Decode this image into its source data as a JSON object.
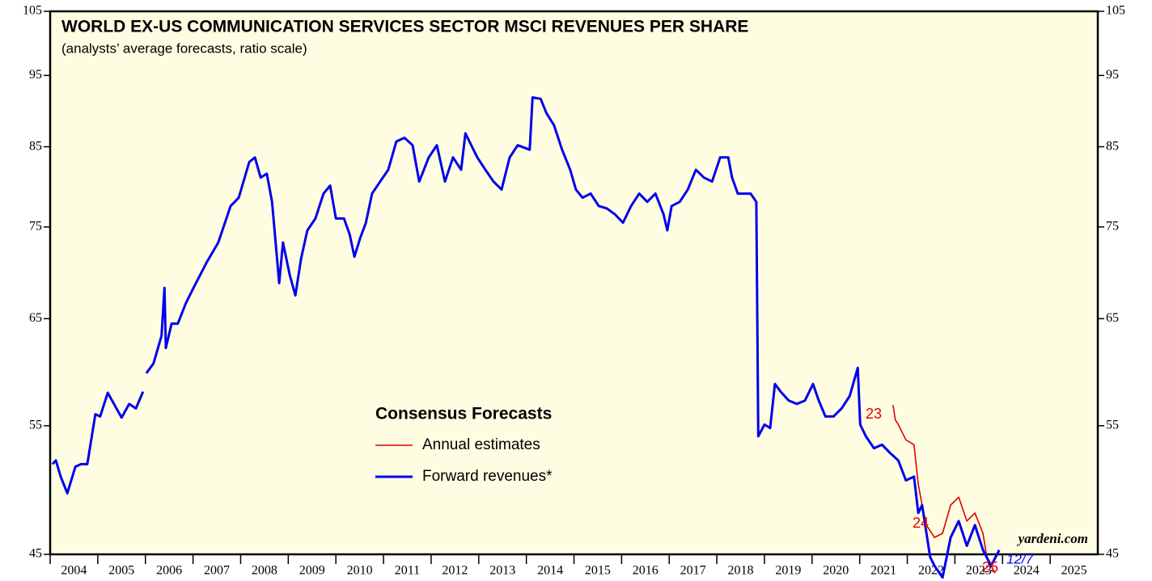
{
  "chart_data": {
    "type": "line",
    "title": "WORLD EX-US COMMUNICATION SERVICES SECTOR MSCI REVENUES PER SHARE",
    "subtitle": "(analysts’ average forecasts, ratio scale)",
    "legend_title": "Consensus Forecasts",
    "source": "yardeni.com",
    "log_scale": true,
    "ylim": [
      45,
      105
    ],
    "yticks": [
      45,
      55,
      65,
      75,
      85,
      95,
      105
    ],
    "xlim": [
      2004,
      2026
    ],
    "xticks": [
      2004,
      2005,
      2006,
      2007,
      2008,
      2009,
      2010,
      2011,
      2012,
      2013,
      2014,
      2015,
      2016,
      2017,
      2018,
      2019,
      2020,
      2021,
      2022,
      2023,
      2024,
      2025
    ],
    "series": [
      {
        "name": "Annual estimates",
        "color": "#e00000",
        "x": [
          2021.7,
          2021.75,
          2021.81,
          2021.97,
          2022.14,
          2022.23,
          2022.31,
          2022.4,
          2022.57,
          2022.74,
          2022.91,
          2023.08,
          2023.25,
          2023.42,
          2023.59,
          2023.67,
          2023.84
        ],
        "values": [
          56.8,
          55.5,
          55.1,
          53.8,
          53.4,
          50.2,
          48.6,
          47.1,
          46.2,
          46.5,
          48.6,
          49.2,
          47.4,
          48.0,
          46.5,
          44.8,
          43.7
        ]
      },
      {
        "name": "Forward revenues*",
        "color": "#0000ee",
        "x": [
          2004.05,
          2004.12,
          2004.22,
          2004.36,
          2004.53,
          2004.65,
          2004.78,
          2004.95,
          2005.05,
          2005.21,
          2005.5,
          2005.66,
          2005.8,
          2005.95,
          2005.98,
          2006.02,
          2006.17,
          2006.34,
          2006.4,
          2006.43,
          2006.55,
          2006.68,
          2006.85,
          2007.02,
          2007.28,
          2007.53,
          2007.79,
          2007.96,
          2008.18,
          2008.3,
          2008.42,
          2008.55,
          2008.66,
          2008.81,
          2008.89,
          2009.03,
          2009.15,
          2009.27,
          2009.4,
          2009.57,
          2009.74,
          2009.88,
          2010.0,
          2010.17,
          2010.29,
          2010.39,
          2010.51,
          2010.63,
          2010.76,
          2010.93,
          2011.1,
          2011.27,
          2011.44,
          2011.61,
          2011.75,
          2011.95,
          2012.12,
          2012.29,
          2012.46,
          2012.63,
          2012.72,
          2012.97,
          2013.14,
          2013.31,
          2013.48,
          2013.65,
          2013.82,
          2014.07,
          2014.13,
          2014.3,
          2014.42,
          2014.58,
          2014.75,
          2014.92,
          2015.04,
          2015.18,
          2015.35,
          2015.52,
          2015.69,
          2015.86,
          2016.03,
          2016.2,
          2016.37,
          2016.54,
          2016.71,
          2016.88,
          2016.96,
          2017.05,
          2017.22,
          2017.39,
          2017.56,
          2017.73,
          2017.9,
          2018.07,
          2018.24,
          2018.32,
          2018.44,
          2018.58,
          2018.71,
          2018.83,
          2018.87,
          2019.0,
          2019.12,
          2019.22,
          2019.34,
          2019.51,
          2019.68,
          2019.85,
          2020.02,
          2020.14,
          2020.28,
          2020.45,
          2020.62,
          2020.79,
          2020.96,
          2021.01,
          2021.13,
          2021.3,
          2021.47,
          2021.64,
          2021.81,
          2021.97,
          2022.14,
          2022.23,
          2022.31,
          2022.48,
          2022.57,
          2022.74,
          2022.91,
          2023.08,
          2023.25,
          2023.42,
          2023.59,
          2023.76,
          2023.93
        ],
        "values": [
          51.8,
          52.1,
          50.8,
          49.5,
          51.6,
          51.8,
          51.8,
          56.0,
          55.8,
          57.9,
          55.7,
          56.9,
          56.5,
          58.0,
          null,
          59.7,
          60.6,
          63.3,
          68.2,
          62.1,
          64.5,
          64.5,
          66.6,
          68.3,
          70.9,
          73.2,
          77.5,
          78.5,
          83.0,
          83.6,
          81.0,
          81.5,
          78.0,
          68.7,
          73.2,
          69.6,
          67.4,
          71.4,
          74.6,
          76.0,
          79.0,
          80.0,
          76.0,
          76.0,
          74.1,
          71.6,
          73.7,
          75.5,
          79.0,
          80.5,
          82.0,
          85.7,
          86.2,
          85.2,
          80.5,
          83.6,
          85.2,
          80.5,
          83.6,
          82.0,
          86.8,
          83.6,
          82.0,
          80.5,
          79.5,
          83.6,
          85.2,
          84.6,
          91.8,
          91.6,
          89.6,
          87.9,
          84.6,
          82.0,
          79.5,
          78.5,
          79.0,
          77.5,
          77.2,
          76.5,
          75.5,
          77.5,
          79.0,
          78.0,
          79.0,
          76.5,
          74.6,
          77.5,
          78.0,
          79.5,
          82.0,
          81.0,
          80.5,
          83.6,
          83.6,
          81.0,
          79.0,
          79.0,
          79.0,
          78.0,
          54.1,
          55.1,
          54.8,
          58.7,
          58.0,
          57.2,
          56.9,
          57.2,
          58.7,
          57.2,
          55.8,
          55.8,
          56.5,
          57.6,
          60.2,
          55.1,
          54.1,
          53.1,
          53.4,
          52.7,
          52.1,
          50.5,
          50.8,
          48.0,
          48.6,
          44.8,
          44.2,
          43.4,
          46.2,
          47.4,
          45.6,
          47.1,
          45.3,
          44.2,
          45.3
        ]
      }
    ],
    "annotations": [
      {
        "text": "23",
        "color": "#e00000"
      },
      {
        "text": "24",
        "color": "#e00000"
      },
      {
        "text": "25",
        "color": "#e00000"
      },
      {
        "text": "12/7",
        "color": "#0000ee"
      }
    ]
  }
}
